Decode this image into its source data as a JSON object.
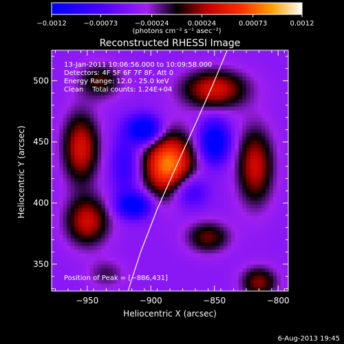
{
  "chart_data": {
    "type": "heatmap",
    "title": "Reconstructed RHESSI Image",
    "xlabel": "Heliocentric X (arcsec)",
    "ylabel": "Heliocentric Y (arcsec)",
    "xlim": [
      -978,
      -792
    ],
    "ylim": [
      328,
      525
    ],
    "x_ticks": [
      -950,
      -900,
      -850,
      -800
    ],
    "y_ticks": [
      350,
      400,
      450,
      500
    ],
    "x_tick_labels": [
      "−950",
      "−900",
      "−850",
      "−800"
    ],
    "y_tick_labels": [
      "350",
      "400",
      "450",
      "500"
    ],
    "colorbar": {
      "min": -0.0012,
      "max": 0.0012,
      "ticks": [
        -0.0012,
        -0.00073,
        -0.00024,
        0.00024,
        0.00073,
        0.0012
      ],
      "tick_labels": [
        "−0.0012",
        "−0.00073",
        "−0.00024",
        "0.00024",
        "0.00073",
        "0.0012"
      ],
      "units_label": "(photons cm⁻² s⁻¹ asec⁻²)"
    },
    "annotations": {
      "time_range": "13-Jan-2011 10:06:56.000 to 10:09:58.000",
      "detectors": "Detectors: 4F 5F 6F 7F 8F, Att 0",
      "energy_range": "Energy Range: 12.0 - 25.0 keV",
      "method": "Clean    Total counts: 1.24E+04",
      "peak": "Position of Peak = [−886,431]"
    },
    "peak": {
      "x": -886,
      "y": 431,
      "value": 0.0012
    },
    "limb_curve": [
      [
        -918,
        328
      ],
      [
        -908,
        360
      ],
      [
        -895,
        395
      ],
      [
        -880,
        430
      ],
      [
        -867,
        460
      ],
      [
        -852,
        495
      ],
      [
        -840,
        525
      ]
    ],
    "components": [
      {
        "x": -886,
        "y": 431,
        "sx": 14,
        "sy": 18,
        "amp": 0.00125
      },
      {
        "x": -955,
        "y": 445,
        "sx": 10,
        "sy": 20,
        "amp": 0.0008
      },
      {
        "x": -950,
        "y": 385,
        "sx": 12,
        "sy": 14,
        "amp": 0.00075
      },
      {
        "x": -850,
        "y": 493,
        "sx": 18,
        "sy": 11,
        "amp": 0.0008
      },
      {
        "x": -940,
        "y": 500,
        "sx": 12,
        "sy": 10,
        "amp": 0.0005
      },
      {
        "x": -818,
        "y": 430,
        "sx": 10,
        "sy": 22,
        "amp": 0.00075
      },
      {
        "x": -855,
        "y": 372,
        "sx": 12,
        "sy": 9,
        "amp": 0.00055
      },
      {
        "x": -815,
        "y": 335,
        "sx": 10,
        "sy": 9,
        "amp": 0.0006
      },
      {
        "x": -935,
        "y": 342,
        "sx": 10,
        "sy": 8,
        "amp": 0.0003
      },
      {
        "x": -905,
        "y": 460,
        "sx": 9,
        "sy": 8,
        "amp": -0.00115
      },
      {
        "x": -850,
        "y": 450,
        "sx": 8,
        "sy": 12,
        "amp": -0.00105
      },
      {
        "x": -913,
        "y": 398,
        "sx": 9,
        "sy": 7,
        "amp": -0.001
      },
      {
        "x": -870,
        "y": 410,
        "sx": 10,
        "sy": 10,
        "amp": -0.0006
      },
      {
        "x": -920,
        "y": 430,
        "sx": 8,
        "sy": 18,
        "amp": -0.0005
      }
    ]
  },
  "footer": {
    "date": "6-Aug-2013 19:45"
  }
}
